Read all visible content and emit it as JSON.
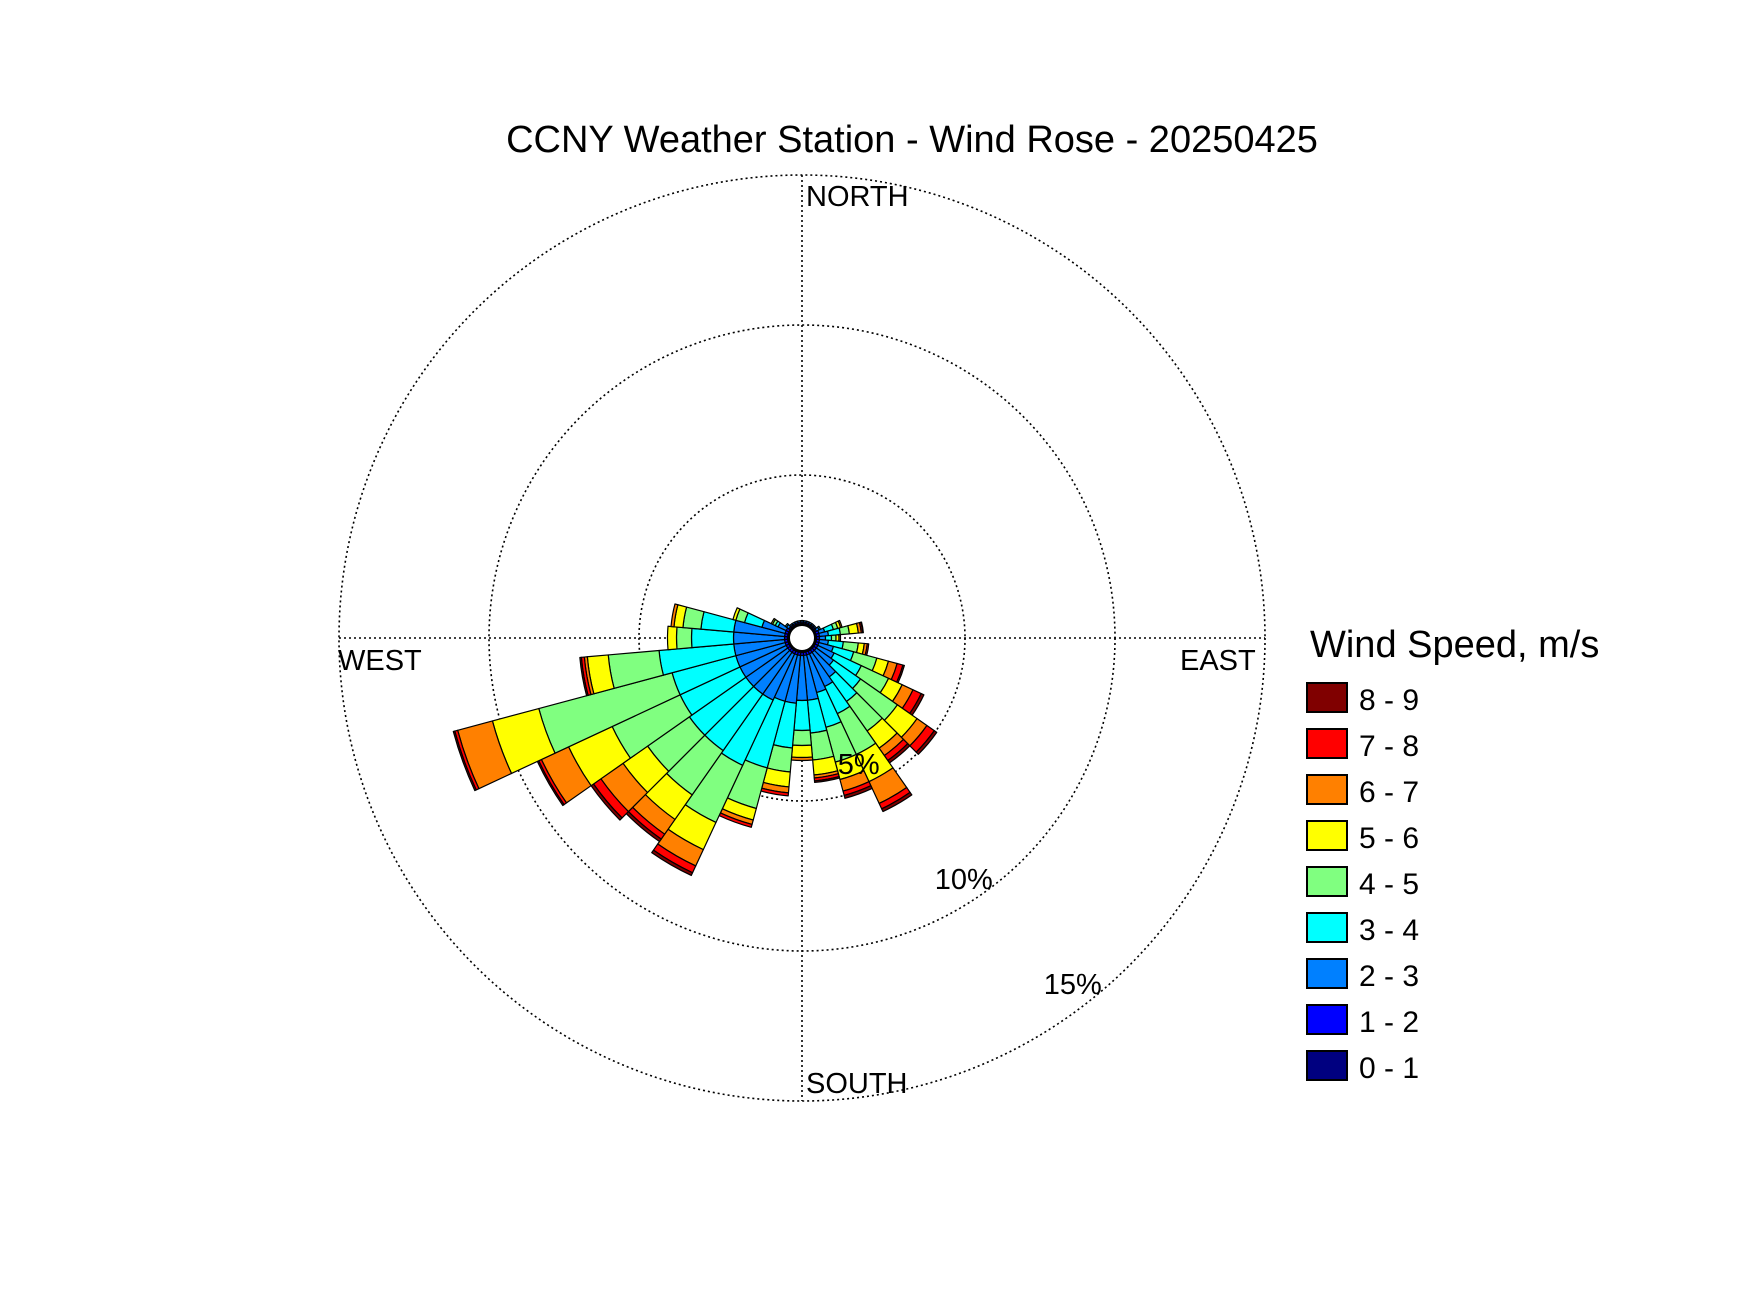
{
  "chart_data": {
    "type": "wind-rose",
    "title": "CCNY Weather Station - Wind Rose - 20250425",
    "cardinals": {
      "north": "NORTH",
      "south": "SOUTH",
      "east": "EAST",
      "west": "WEST"
    },
    "radial_unit": "%",
    "radial_max": 15,
    "rings": [
      {
        "value": 5,
        "label": "5%"
      },
      {
        "value": 10,
        "label": "10%"
      },
      {
        "value": 15,
        "label": "15%"
      }
    ],
    "grid": true,
    "legend": {
      "title": "Wind Speed, m/s",
      "placement": "right",
      "bins": [
        {
          "label": "8 - 9",
          "color": "#800000"
        },
        {
          "label": "7 - 8",
          "color": "#ff0000"
        },
        {
          "label": "6 - 7",
          "color": "#ff8000"
        },
        {
          "label": "5 - 6",
          "color": "#ffff00"
        },
        {
          "label": "4 - 5",
          "color": "#80ff80"
        },
        {
          "label": "3 - 4",
          "color": "#00ffff"
        },
        {
          "label": "2 - 3",
          "color": "#0080ff"
        },
        {
          "label": "1 - 2",
          "color": "#0000ff"
        },
        {
          "label": "0 - 1",
          "color": "#000080"
        }
      ]
    },
    "speed_bins_order": [
      "0 - 1",
      "1 - 2",
      "2 - 3",
      "3 - 4",
      "4 - 5",
      "5 - 6",
      "6 - 7",
      "7 - 8",
      "8 - 9"
    ],
    "sector_width_deg": 10,
    "sectors": [
      {
        "direction_deg": 0,
        "percent": [
          0.05,
          0.05,
          0.05,
          0,
          0,
          0,
          0,
          0,
          0
        ]
      },
      {
        "direction_deg": 10,
        "percent": [
          0.05,
          0.05,
          0.05,
          0,
          0,
          0,
          0,
          0,
          0
        ]
      },
      {
        "direction_deg": 20,
        "percent": [
          0.05,
          0.05,
          0.05,
          0,
          0,
          0,
          0,
          0,
          0
        ]
      },
      {
        "direction_deg": 30,
        "percent": [
          0.05,
          0.05,
          0.05,
          0,
          0,
          0,
          0,
          0,
          0
        ]
      },
      {
        "direction_deg": 40,
        "percent": [
          0.05,
          0.05,
          0.05,
          0,
          0,
          0,
          0,
          0,
          0
        ]
      },
      {
        "direction_deg": 50,
        "percent": [
          0.05,
          0.05,
          0.05,
          0,
          0,
          0,
          0,
          0,
          0
        ]
      },
      {
        "direction_deg": 60,
        "percent": [
          0.05,
          0.05,
          0.1,
          0.05,
          0,
          0,
          0,
          0,
          0
        ]
      },
      {
        "direction_deg": 70,
        "percent": [
          0.05,
          0.1,
          0.2,
          0.3,
          0.15,
          0.1,
          0.05,
          0,
          0
        ]
      },
      {
        "direction_deg": 80,
        "percent": [
          0.05,
          0.1,
          0.3,
          0.4,
          0.3,
          0.3,
          0.1,
          0.05,
          0.02
        ]
      },
      {
        "direction_deg": 90,
        "percent": [
          0.05,
          0.1,
          0.2,
          0.2,
          0.15,
          0.1,
          0.05,
          0,
          0
        ]
      },
      {
        "direction_deg": 100,
        "percent": [
          0.05,
          0.1,
          0.3,
          0.5,
          0.5,
          0.2,
          0.1,
          0.05,
          0
        ]
      },
      {
        "direction_deg": 110,
        "percent": [
          0.05,
          0.1,
          0.5,
          0.7,
          0.8,
          0.4,
          0.3,
          0.2,
          0.05
        ]
      },
      {
        "direction_deg": 120,
        "percent": [
          0.05,
          0.1,
          0.6,
          1.0,
          1.0,
          0.5,
          0.4,
          0.3,
          0.1
        ]
      },
      {
        "direction_deg": 130,
        "percent": [
          0.05,
          0.1,
          0.7,
          1.1,
          1.5,
          0.8,
          0.4,
          0.3,
          0.1
        ]
      },
      {
        "direction_deg": 140,
        "percent": [
          0.05,
          0.1,
          1.0,
          1.0,
          1.2,
          0.7,
          0.3,
          0.2,
          0.1
        ]
      },
      {
        "direction_deg": 150,
        "percent": [
          0.05,
          0.1,
          1.2,
          1.0,
          1.5,
          1.0,
          0.8,
          0.2,
          0.1
        ]
      },
      {
        "direction_deg": 160,
        "percent": [
          0.05,
          0.1,
          1.3,
          1.2,
          1.2,
          0.6,
          0.4,
          0.15,
          0.1
        ]
      },
      {
        "direction_deg": 170,
        "percent": [
          0.05,
          0.1,
          1.5,
          1.1,
          0.9,
          0.5,
          0.1,
          0.1,
          0.05
        ]
      },
      {
        "direction_deg": 180,
        "percent": [
          0.05,
          0.1,
          1.5,
          1.0,
          0.5,
          0.4,
          0.1,
          0,
          0
        ]
      },
      {
        "direction_deg": 190,
        "percent": [
          0.05,
          0.1,
          1.6,
          1.5,
          0.8,
          0.5,
          0.2,
          0.1,
          0
        ]
      },
      {
        "direction_deg": 200,
        "percent": [
          0.05,
          0.1,
          1.6,
          2.3,
          1.4,
          0.4,
          0.15,
          0.1,
          0
        ]
      },
      {
        "direction_deg": 210,
        "percent": [
          0.05,
          0.1,
          1.7,
          2.4,
          2.1,
          1.0,
          0.6,
          0.25,
          0.1
        ]
      },
      {
        "direction_deg": 220,
        "percent": [
          0.05,
          0.1,
          1.7,
          2.3,
          1.8,
          1.0,
          0.6,
          0.2,
          0.1
        ]
      },
      {
        "direction_deg": 230,
        "percent": [
          0.05,
          0.1,
          1.7,
          2.3,
          1.7,
          1.0,
          0.9,
          0.3,
          0.1
        ]
      },
      {
        "direction_deg": 240,
        "percent": [
          0.05,
          0.1,
          1.7,
          2.2,
          2.5,
          1.6,
          1.0,
          0.1,
          0.05
        ]
      },
      {
        "direction_deg": 250,
        "percent": [
          0.05,
          0.1,
          1.7,
          2.2,
          4.6,
          1.6,
          1.2,
          0.1,
          0.05
        ]
      },
      {
        "direction_deg": 260,
        "percent": [
          0.05,
          0.1,
          1.7,
          2.5,
          1.7,
          0.7,
          0.1,
          0.1,
          0.05
        ]
      },
      {
        "direction_deg": 270,
        "percent": [
          0.05,
          0.1,
          1.7,
          1.4,
          0.5,
          0.3,
          0,
          0,
          0
        ]
      },
      {
        "direction_deg": 280,
        "percent": [
          0.05,
          0.1,
          1.7,
          1.1,
          0.6,
          0.3,
          0.1,
          0,
          0
        ]
      },
      {
        "direction_deg": 290,
        "percent": [
          0.05,
          0.1,
          0.8,
          0.6,
          0.3,
          0.1,
          0,
          0,
          0
        ]
      },
      {
        "direction_deg": 300,
        "percent": [
          0.05,
          0.1,
          0.3,
          0.1,
          0.1,
          0.05,
          0,
          0,
          0
        ]
      },
      {
        "direction_deg": 310,
        "percent": [
          0.05,
          0.05,
          0.1,
          0.05,
          0,
          0,
          0,
          0,
          0
        ]
      },
      {
        "direction_deg": 320,
        "percent": [
          0.05,
          0.05,
          0.05,
          0,
          0,
          0,
          0,
          0,
          0
        ]
      },
      {
        "direction_deg": 330,
        "percent": [
          0.05,
          0.05,
          0.05,
          0,
          0,
          0,
          0,
          0,
          0
        ]
      },
      {
        "direction_deg": 340,
        "percent": [
          0.05,
          0.05,
          0.05,
          0,
          0,
          0,
          0,
          0,
          0
        ]
      },
      {
        "direction_deg": 350,
        "percent": [
          0.05,
          0.05,
          0.05,
          0,
          0,
          0,
          0,
          0,
          0
        ]
      }
    ]
  }
}
